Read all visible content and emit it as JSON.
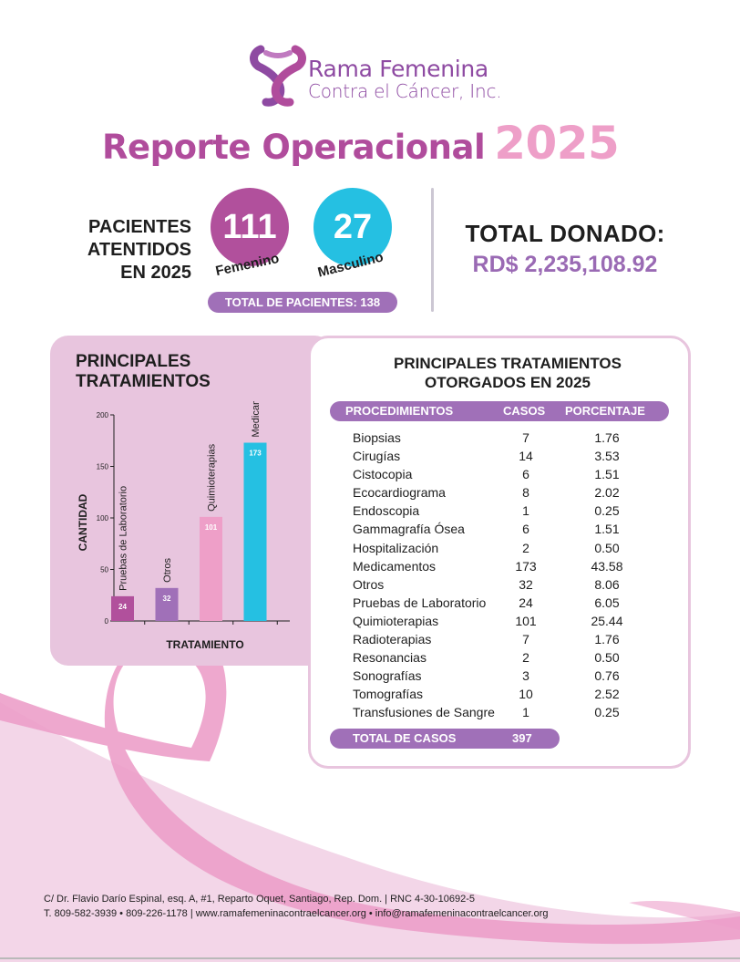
{
  "organization": {
    "name_line1": "Rama Femenina",
    "name_line2": "Contra el Cáncer, Inc.",
    "logo_icon": "ribbon-cross-logo-icon"
  },
  "report": {
    "title": "Reporte Operacional",
    "year": "2025"
  },
  "patients": {
    "label_line1": "PACIENTES",
    "label_line2": "ATENTIDOS",
    "label_line3": "EN 2025",
    "female_count": "111",
    "female_label": "Femenino",
    "male_count": "27",
    "male_label": "Masculino",
    "total_label": "TOTAL DE PACIENTES: 138"
  },
  "donations": {
    "label": "TOTAL DONADO:",
    "value": "RD$ 2,235,108.92"
  },
  "colors": {
    "purple": "#b04c9c",
    "lavender": "#a070b8",
    "pink": "#ee9fc8",
    "cyan": "#25c0e2",
    "panel_pink": "#e8c5de"
  },
  "chart_panel": {
    "title_line1": "PRINCIPALES",
    "title_line2": "TRATAMIENTOS"
  },
  "chart_data": {
    "type": "bar",
    "title": "PRINCIPALES TRATAMIENTOS",
    "xlabel": "TRATAMIENTO",
    "ylabel": "CANTIDAD",
    "ylim": [
      0,
      200
    ],
    "yticks": [
      0,
      50,
      100,
      150,
      200
    ],
    "categories": [
      "Pruebas de Laboratorio",
      "Otros",
      "Quimioterapias",
      "Medicamentos"
    ],
    "values": [
      24,
      32,
      101,
      173
    ],
    "bar_colors": [
      "#b1509c",
      "#a070b8",
      "#ee9fc8",
      "#25c0e2"
    ],
    "grid": false
  },
  "table": {
    "title_line1": "PRINCIPALES TRATAMIENTOS",
    "title_line2": "OTORGADOS EN 2025",
    "headers": [
      "PROCEDIMIENTOS",
      "CASOS",
      "PORCENTAJE"
    ],
    "rows": [
      {
        "name": "Biopsias",
        "cases": "7",
        "pct": "1.76"
      },
      {
        "name": "Cirugías",
        "cases": "14",
        "pct": "3.53"
      },
      {
        "name": "Cistocopia",
        "cases": "6",
        "pct": "1.51"
      },
      {
        "name": "Ecocardiograma",
        "cases": "8",
        "pct": "2.02"
      },
      {
        "name": "Endoscopia",
        "cases": "1",
        "pct": "0.25"
      },
      {
        "name": "Gammagrafía Ósea",
        "cases": "6",
        "pct": "1.51"
      },
      {
        "name": "Hospitalización",
        "cases": "2",
        "pct": "0.50"
      },
      {
        "name": "Medicamentos",
        "cases": "173",
        "pct": "43.58"
      },
      {
        "name": "Otros",
        "cases": "32",
        "pct": "8.06"
      },
      {
        "name": "Pruebas de Laboratorio",
        "cases": "24",
        "pct": "6.05"
      },
      {
        "name": "Quimioterapias",
        "cases": "101",
        "pct": "25.44"
      },
      {
        "name": "Radioterapias",
        "cases": "7",
        "pct": "1.76"
      },
      {
        "name": "Resonancias",
        "cases": "2",
        "pct": "0.50"
      },
      {
        "name": "Sonografías",
        "cases": "3",
        "pct": "0.76"
      },
      {
        "name": "Tomografías",
        "cases": "10",
        "pct": "2.52"
      },
      {
        "name": "Transfusiones de Sangre",
        "cases": "1",
        "pct": "0.25"
      }
    ],
    "total_label": "TOTAL DE CASOS",
    "total_value": "397"
  },
  "footer": {
    "line1": "C/ Dr. Flavio Darío Espinal, esq. A, #1, Reparto Oquet, Santiago, Rep. Dom. | RNC 4-30-10692-5",
    "line2": "T. 809-582-3939 • 809-226-1178 | www.ramafemeninacontraelcancer.org • info@ramafemeninacontraelcancer.org"
  }
}
